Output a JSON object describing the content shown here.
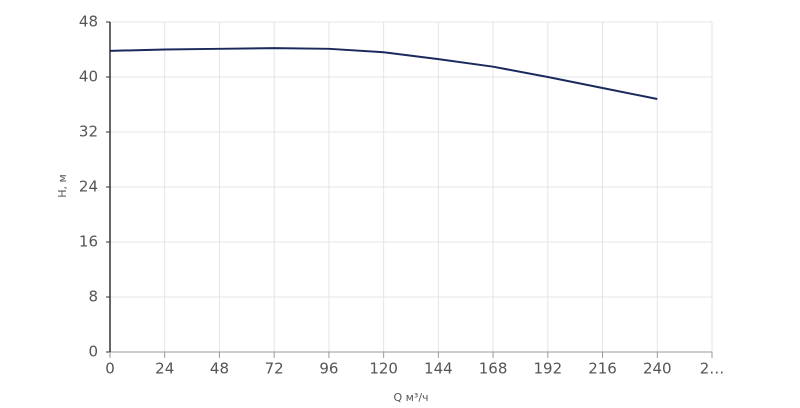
{
  "chart_data": {
    "type": "line",
    "x_label": "Q м³/ч",
    "y_label": "H, м",
    "x": [
      0,
      24,
      48,
      72,
      96,
      120,
      144,
      168,
      192,
      216,
      240
    ],
    "series": [
      {
        "name": "H",
        "color": "#1b2a5c",
        "values": [
          43.8,
          44.0,
          44.1,
          44.2,
          44.1,
          43.6,
          42.6,
          41.5,
          40.0,
          38.4,
          36.8
        ]
      }
    ],
    "xlim": [
      0,
      264
    ],
    "xticks": [
      0,
      24,
      48,
      72,
      96,
      120,
      144,
      168,
      192,
      216,
      240,
      {
        "value": 264,
        "label": "2…"
      }
    ],
    "ylim": [
      0,
      48
    ],
    "yticks": [
      0,
      8,
      16,
      24,
      32,
      40,
      48
    ],
    "grid": true
  }
}
